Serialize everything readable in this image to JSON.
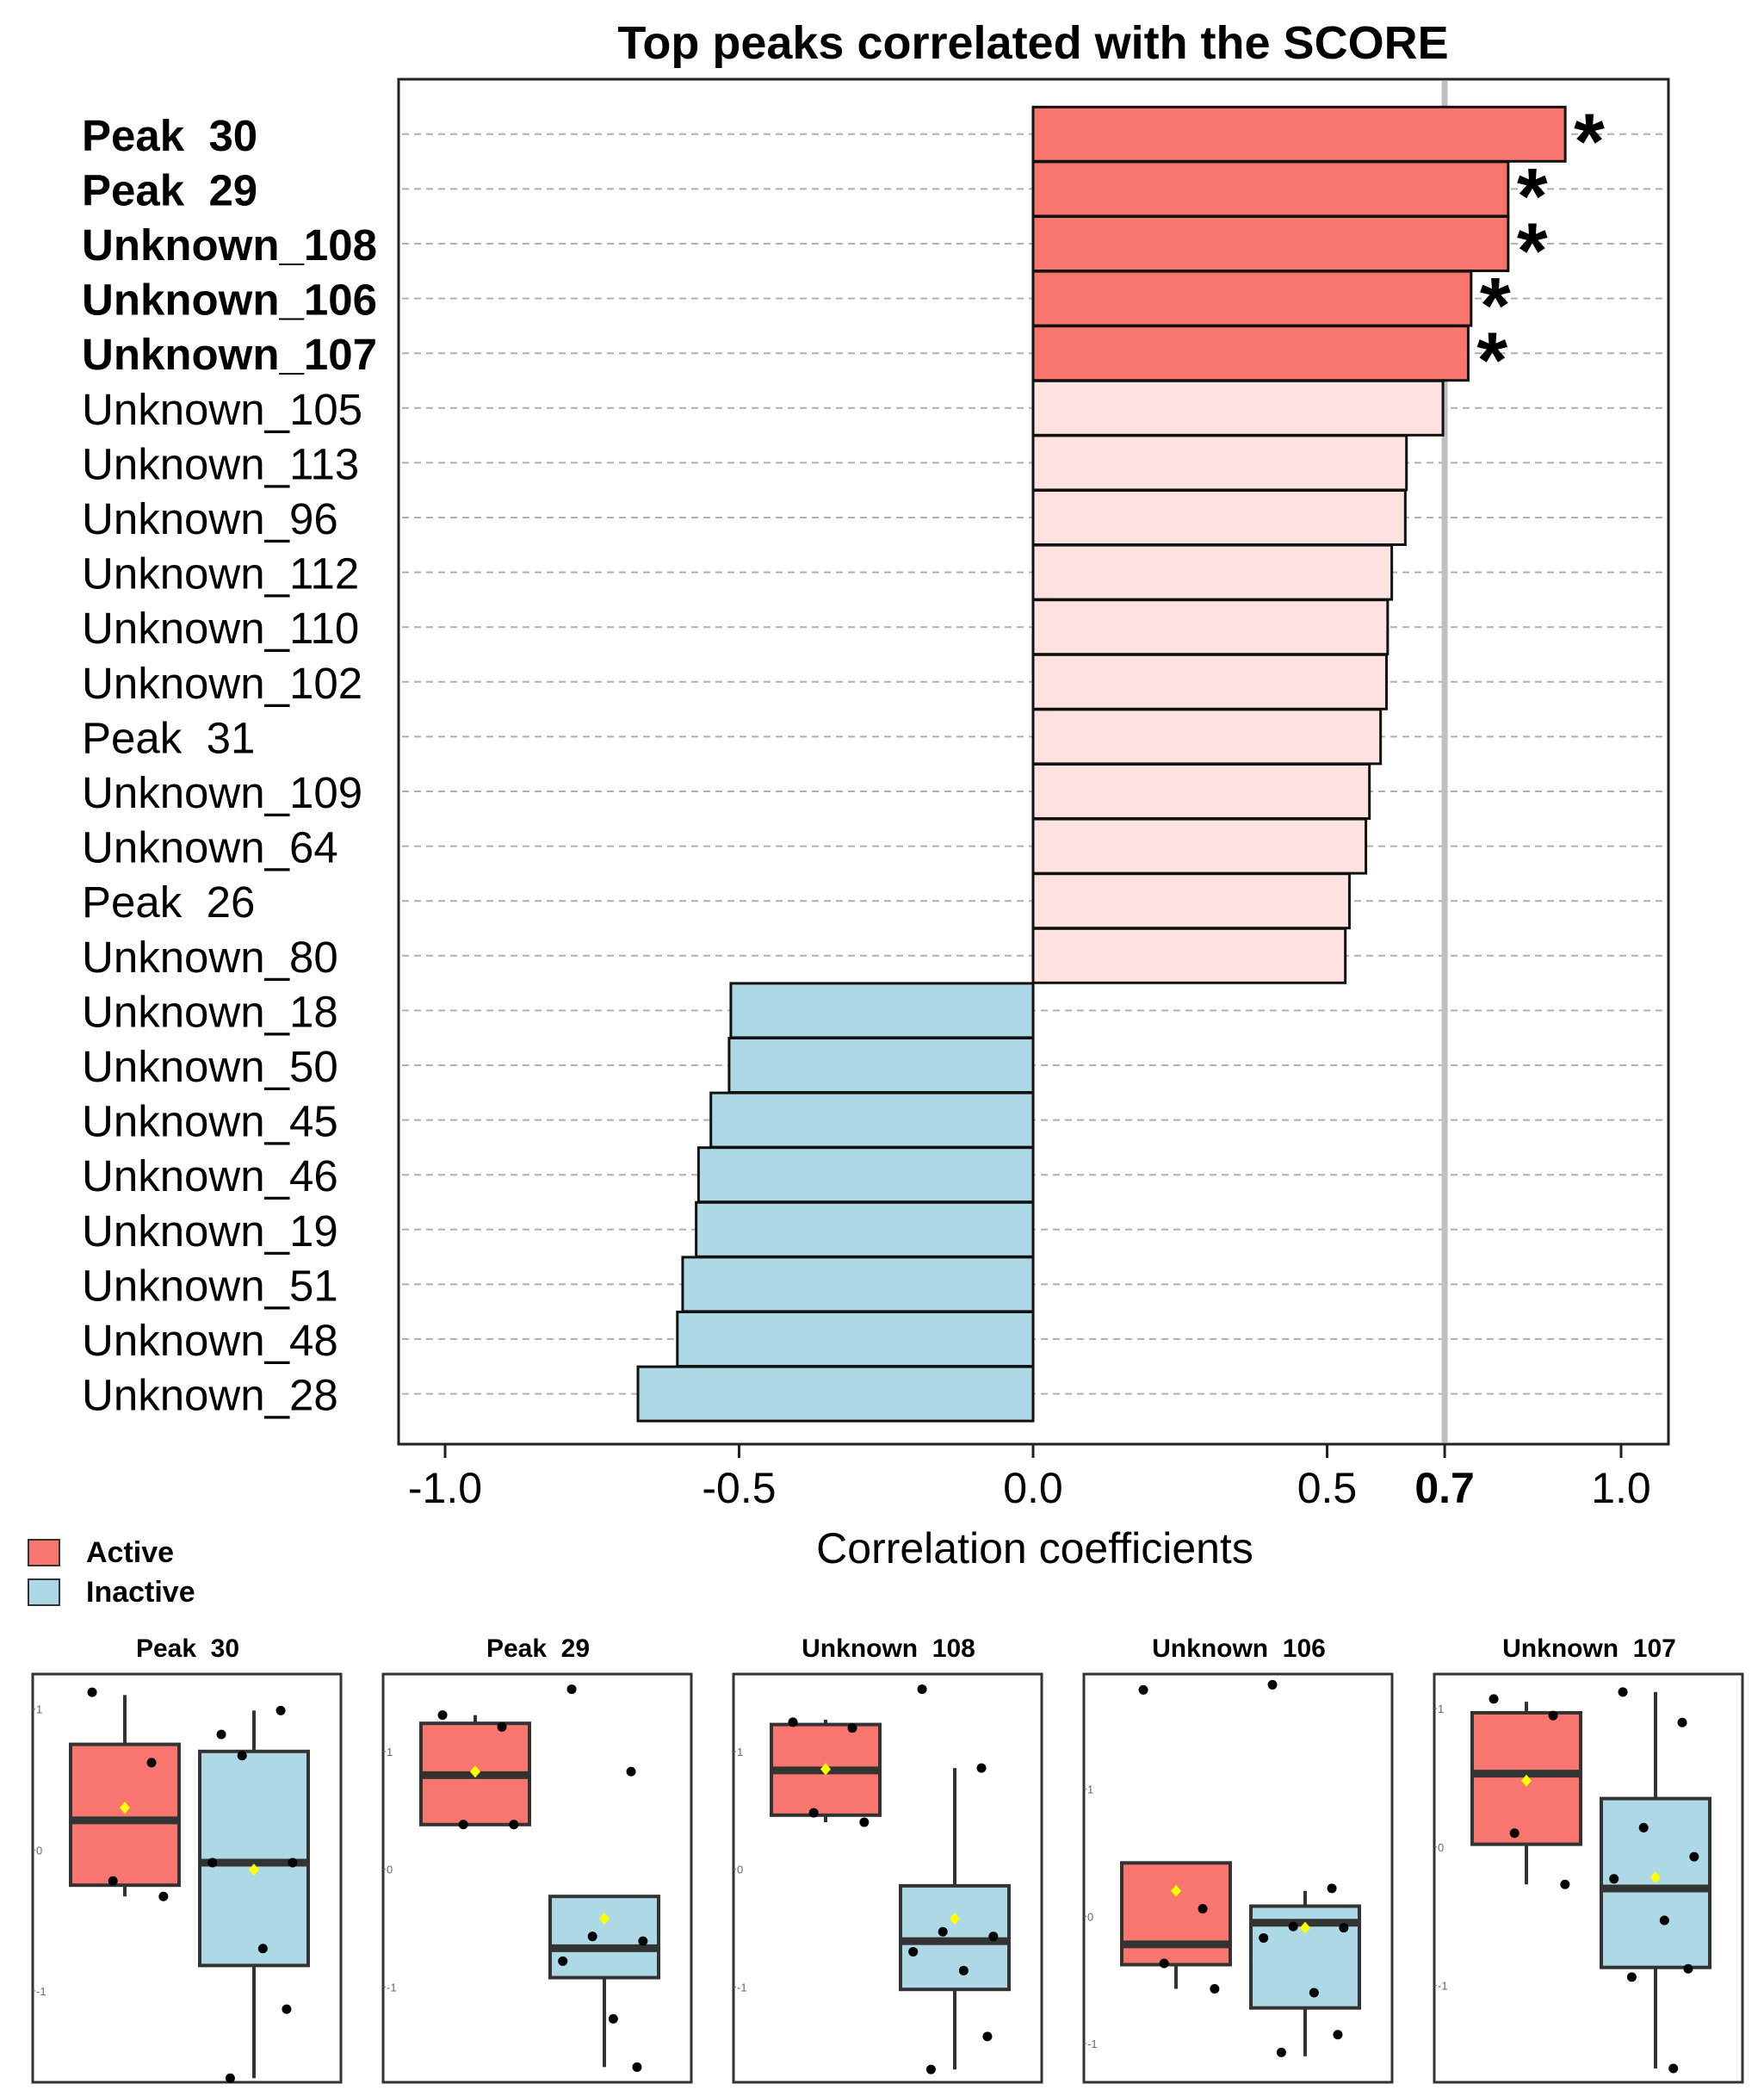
{
  "chart_data": {
    "type": "bar",
    "title": "Top peaks correlated with the SCORE",
    "xlabel": "Correlation coefficients",
    "ylabel": "",
    "xlim": [
      -1.0,
      1.0
    ],
    "x_ticks": [
      "-1.0",
      "-0.5",
      "0.0",
      "0.5",
      "0.7",
      "1.0"
    ],
    "x_tick_values": [
      -1.0,
      -0.5,
      0.0,
      0.5,
      0.7,
      1.0
    ],
    "threshold": 0.7,
    "colors": {
      "active_sig": "#F8766D",
      "active": "#FDE2E0",
      "inactive": "#ADD8E6",
      "threshold_line": "#C0C0C0"
    },
    "bars": [
      {
        "label": "Peak  30",
        "value": 0.905,
        "group": "active",
        "significant": true
      },
      {
        "label": "Peak  29",
        "value": 0.808,
        "group": "active",
        "significant": true
      },
      {
        "label": "Unknown_108",
        "value": 0.808,
        "group": "active",
        "significant": true
      },
      {
        "label": "Unknown_106",
        "value": 0.745,
        "group": "active",
        "significant": true
      },
      {
        "label": "Unknown_107",
        "value": 0.74,
        "group": "active",
        "significant": true
      },
      {
        "label": "Unknown_105",
        "value": 0.697,
        "group": "active",
        "significant": false
      },
      {
        "label": "Unknown_113",
        "value": 0.635,
        "group": "active",
        "significant": false
      },
      {
        "label": "Unknown_96",
        "value": 0.633,
        "group": "active",
        "significant": false
      },
      {
        "label": "Unknown_112",
        "value": 0.61,
        "group": "active",
        "significant": false
      },
      {
        "label": "Unknown_110",
        "value": 0.603,
        "group": "active",
        "significant": false
      },
      {
        "label": "Unknown_102",
        "value": 0.601,
        "group": "active",
        "significant": false
      },
      {
        "label": "Peak  31",
        "value": 0.591,
        "group": "active",
        "significant": false
      },
      {
        "label": "Unknown_109",
        "value": 0.572,
        "group": "active",
        "significant": false
      },
      {
        "label": "Unknown_64",
        "value": 0.566,
        "group": "active",
        "significant": false
      },
      {
        "label": "Peak  26",
        "value": 0.538,
        "group": "active",
        "significant": false
      },
      {
        "label": "Unknown_80",
        "value": 0.531,
        "group": "active",
        "significant": false
      },
      {
        "label": "Unknown_18",
        "value": -0.514,
        "group": "inactive",
        "significant": false
      },
      {
        "label": "Unknown_50",
        "value": -0.517,
        "group": "inactive",
        "significant": false
      },
      {
        "label": "Unknown_45",
        "value": -0.548,
        "group": "inactive",
        "significant": false
      },
      {
        "label": "Unknown_46",
        "value": -0.569,
        "group": "inactive",
        "significant": false
      },
      {
        "label": "Unknown_19",
        "value": -0.573,
        "group": "inactive",
        "significant": false
      },
      {
        "label": "Unknown_51",
        "value": -0.596,
        "group": "inactive",
        "significant": false
      },
      {
        "label": "Unknown_48",
        "value": -0.605,
        "group": "inactive",
        "significant": false
      },
      {
        "label": "Unknown_28",
        "value": -0.672,
        "group": "inactive",
        "significant": false
      }
    ],
    "significance_marker": "*",
    "legend": [
      {
        "label": "Active",
        "color": "#F8766D"
      },
      {
        "label": "Inactive",
        "color": "#ADD8E6"
      }
    ],
    "boxplots": [
      {
        "title": "Peak  30",
        "ylim": [
          -1.6,
          1.2
        ],
        "yticks": [
          -1,
          0,
          1
        ],
        "groups": [
          {
            "name": "Active",
            "color": "#F8766D",
            "q1": -0.25,
            "median": 0.21,
            "q3": 0.75,
            "whisker_low": -0.33,
            "whisker_high": 1.1,
            "mean": 0.3,
            "points": [
              1.12,
              0.62,
              -0.22,
              -0.33
            ]
          },
          {
            "name": "Inactive",
            "color": "#ADD8E6",
            "q1": -0.82,
            "median": -0.09,
            "q3": 0.7,
            "whisker_low": -1.62,
            "whisker_high": 0.99,
            "mean": -0.14,
            "points": [
              0.82,
              0.99,
              0.67,
              -0.09,
              -0.09,
              -0.7,
              -1.13,
              -1.62
            ]
          }
        ]
      },
      {
        "title": "Peak  29",
        "ylim": [
          -1.75,
          1.6
        ],
        "yticks": [
          -1,
          0,
          1
        ],
        "groups": [
          {
            "name": "Active",
            "color": "#F8766D",
            "q1": 0.38,
            "median": 0.8,
            "q3": 1.24,
            "whisker_low": 0.38,
            "whisker_high": 1.31,
            "mean": 0.83,
            "points": [
              1.31,
              1.21,
              0.38,
              0.38
            ]
          },
          {
            "name": "Inactive",
            "color": "#ADD8E6",
            "q1": -0.92,
            "median": -0.67,
            "q3": -0.23,
            "whisker_low": -1.68,
            "whisker_high": -0.23,
            "mean": -0.42,
            "points": [
              1.53,
              0.83,
              -0.57,
              -0.61,
              -0.78,
              -1.27,
              -1.68
            ]
          }
        ]
      },
      {
        "title": "Unknown  108",
        "ylim": [
          -1.75,
          1.6
        ],
        "yticks": [
          -1,
          0,
          1
        ],
        "groups": [
          {
            "name": "Active",
            "color": "#F8766D",
            "q1": 0.46,
            "median": 0.84,
            "q3": 1.23,
            "whisker_low": 0.4,
            "whisker_high": 1.27,
            "mean": 0.85,
            "points": [
              1.25,
              1.2,
              0.48,
              0.4
            ]
          },
          {
            "name": "Inactive",
            "color": "#ADD8E6",
            "q1": -1.02,
            "median": -0.61,
            "q3": -0.14,
            "whisker_low": -1.7,
            "whisker_high": 0.86,
            "mean": -0.42,
            "points": [
              1.53,
              0.86,
              -0.53,
              -0.57,
              -0.7,
              -0.86,
              -1.42,
              -1.7
            ]
          }
        ]
      },
      {
        "title": "Unknown  106",
        "ylim": [
          -1.25,
          1.85
        ],
        "yticks": [
          -1,
          0,
          1
        ],
        "groups": [
          {
            "name": "Active",
            "color": "#F8766D",
            "q1": -0.38,
            "median": -0.22,
            "q3": 0.42,
            "whisker_low": -0.57,
            "whisker_high": 0.42,
            "mean": 0.2,
            "points": [
              1.78,
              0.06,
              -0.37,
              -0.57
            ]
          },
          {
            "name": "Inactive",
            "color": "#ADD8E6",
            "q1": -0.72,
            "median": -0.05,
            "q3": 0.08,
            "whisker_low": -1.1,
            "whisker_high": 0.2,
            "mean": -0.09,
            "points": [
              1.82,
              0.22,
              -0.08,
              -0.09,
              -0.17,
              -0.6,
              -0.93,
              -1.07
            ]
          }
        ]
      },
      {
        "title": "Unknown  107",
        "ylim": [
          -1.65,
          1.2
        ],
        "yticks": [
          -1,
          0,
          1
        ],
        "groups": [
          {
            "name": "Active",
            "color": "#F8766D",
            "q1": 0.02,
            "median": 0.53,
            "q3": 0.97,
            "whisker_low": -0.27,
            "whisker_high": 1.05,
            "mean": 0.48,
            "points": [
              1.07,
              0.95,
              0.1,
              -0.27
            ]
          },
          {
            "name": "Inactive",
            "color": "#ADD8E6",
            "q1": -0.87,
            "median": -0.3,
            "q3": 0.35,
            "whisker_low": -1.6,
            "whisker_high": 1.12,
            "mean": -0.22,
            "points": [
              1.12,
              0.9,
              0.14,
              -0.07,
              -0.23,
              -0.53,
              -0.88,
              -0.94,
              -1.6
            ]
          }
        ]
      }
    ]
  }
}
